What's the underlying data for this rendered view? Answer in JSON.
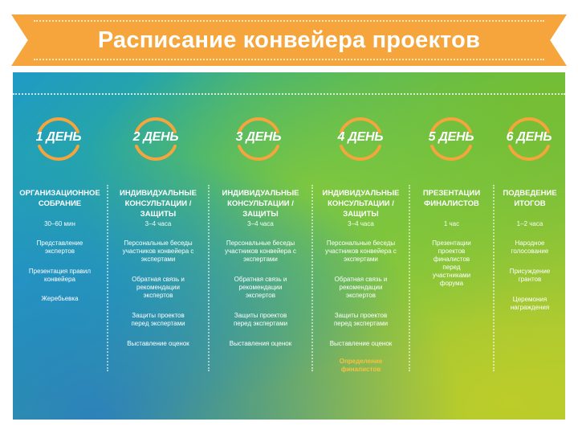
{
  "header": {
    "title": "Расписание конвейера проектов"
  },
  "accent_color": "#f5a53b",
  "columns": [
    {
      "day": "1 ДЕНЬ",
      "title": "ОРГАНИЗАЦИОННОЕ СОБРАНИЕ",
      "duration": "30–60 мин",
      "items": [
        "Представление экспертов",
        "Презентация правил конвейера",
        "Жеребьевка"
      ]
    },
    {
      "day": "2 ДЕНЬ",
      "title": "ИНДИВИДУАЛЬНЫЕ КОНСУЛЬТАЦИИ / ЗАЩИТЫ",
      "duration": "3–4 часа",
      "items": [
        "Персональные беседы участников конвейера с экспертами",
        "Обратная связь и рекомендации экспертов",
        "Защиты проектов перед экспертами",
        "Выставление оценок"
      ]
    },
    {
      "day": "3 ДЕНЬ",
      "title": "ИНДИВИДУАЛЬНЫЕ КОНСУЛЬТАЦИИ / ЗАЩИТЫ",
      "duration": "3–4 часа",
      "items": [
        "Персональные беседы участников конвейера с экспертами",
        "Обратная связь и рекомендации экспертов",
        "Защиты проектов перед экспертами",
        "Выставления оценок"
      ]
    },
    {
      "day": "4 ДЕНЬ",
      "title": "ИНДИВИДУАЛЬНЫЕ КОНСУЛЬТАЦИИ / ЗАЩИТЫ",
      "duration": "3–4 часа",
      "items": [
        "Персональные беседы участников конвейера с экспертами",
        "Обратная связь и рекомендации экспертов",
        "Защиты проектов перед экспертами",
        "Выставление оценок"
      ],
      "highlight": "Определение финалистов"
    },
    {
      "day": "5 ДЕНЬ",
      "title": "ПРЕЗЕНТАЦИИ ФИНАЛИСТОВ",
      "duration": "1 час",
      "items": [
        "Презентации проектов финалистов перед участниками форума"
      ]
    },
    {
      "day": "6 ДЕНЬ",
      "title": "ПОДВЕДЕНИЕ ИТОГОВ",
      "duration": "1–2 часа",
      "items": [
        "Народное голосование",
        "Присуждение грантов",
        "Церемония награждения"
      ]
    }
  ]
}
